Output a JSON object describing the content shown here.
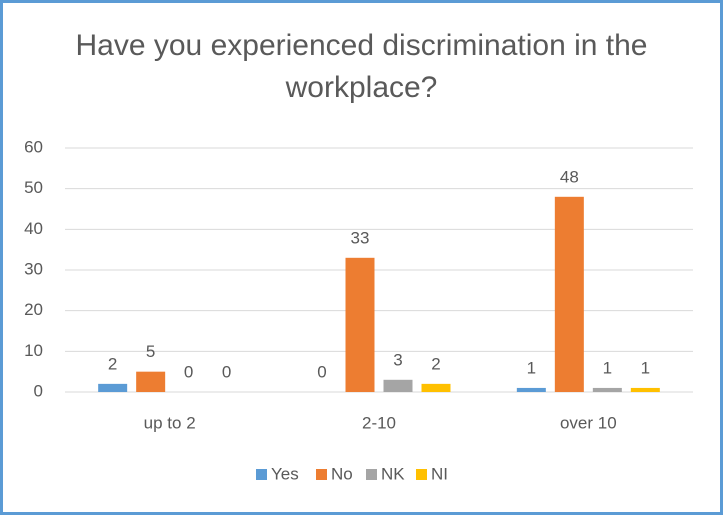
{
  "chart_data": {
    "type": "bar",
    "title": "Have you experienced discrimination in the workplace?",
    "categories": [
      "up to 2",
      "2-10",
      "over 10"
    ],
    "series": [
      {
        "name": "Yes",
        "color": "#5b9bd5",
        "values": [
          2,
          0,
          1
        ]
      },
      {
        "name": "No",
        "color": "#ed7d31",
        "values": [
          5,
          33,
          48
        ]
      },
      {
        "name": "NK",
        "color": "#a5a5a5",
        "values": [
          0,
          3,
          1
        ]
      },
      {
        "name": "NI",
        "color": "#ffc000",
        "values": [
          0,
          2,
          1
        ]
      }
    ],
    "ylim": [
      0,
      60
    ],
    "yticks": [
      0,
      10,
      20,
      30,
      40,
      50,
      60
    ],
    "grid": true,
    "legend": "bottom"
  }
}
